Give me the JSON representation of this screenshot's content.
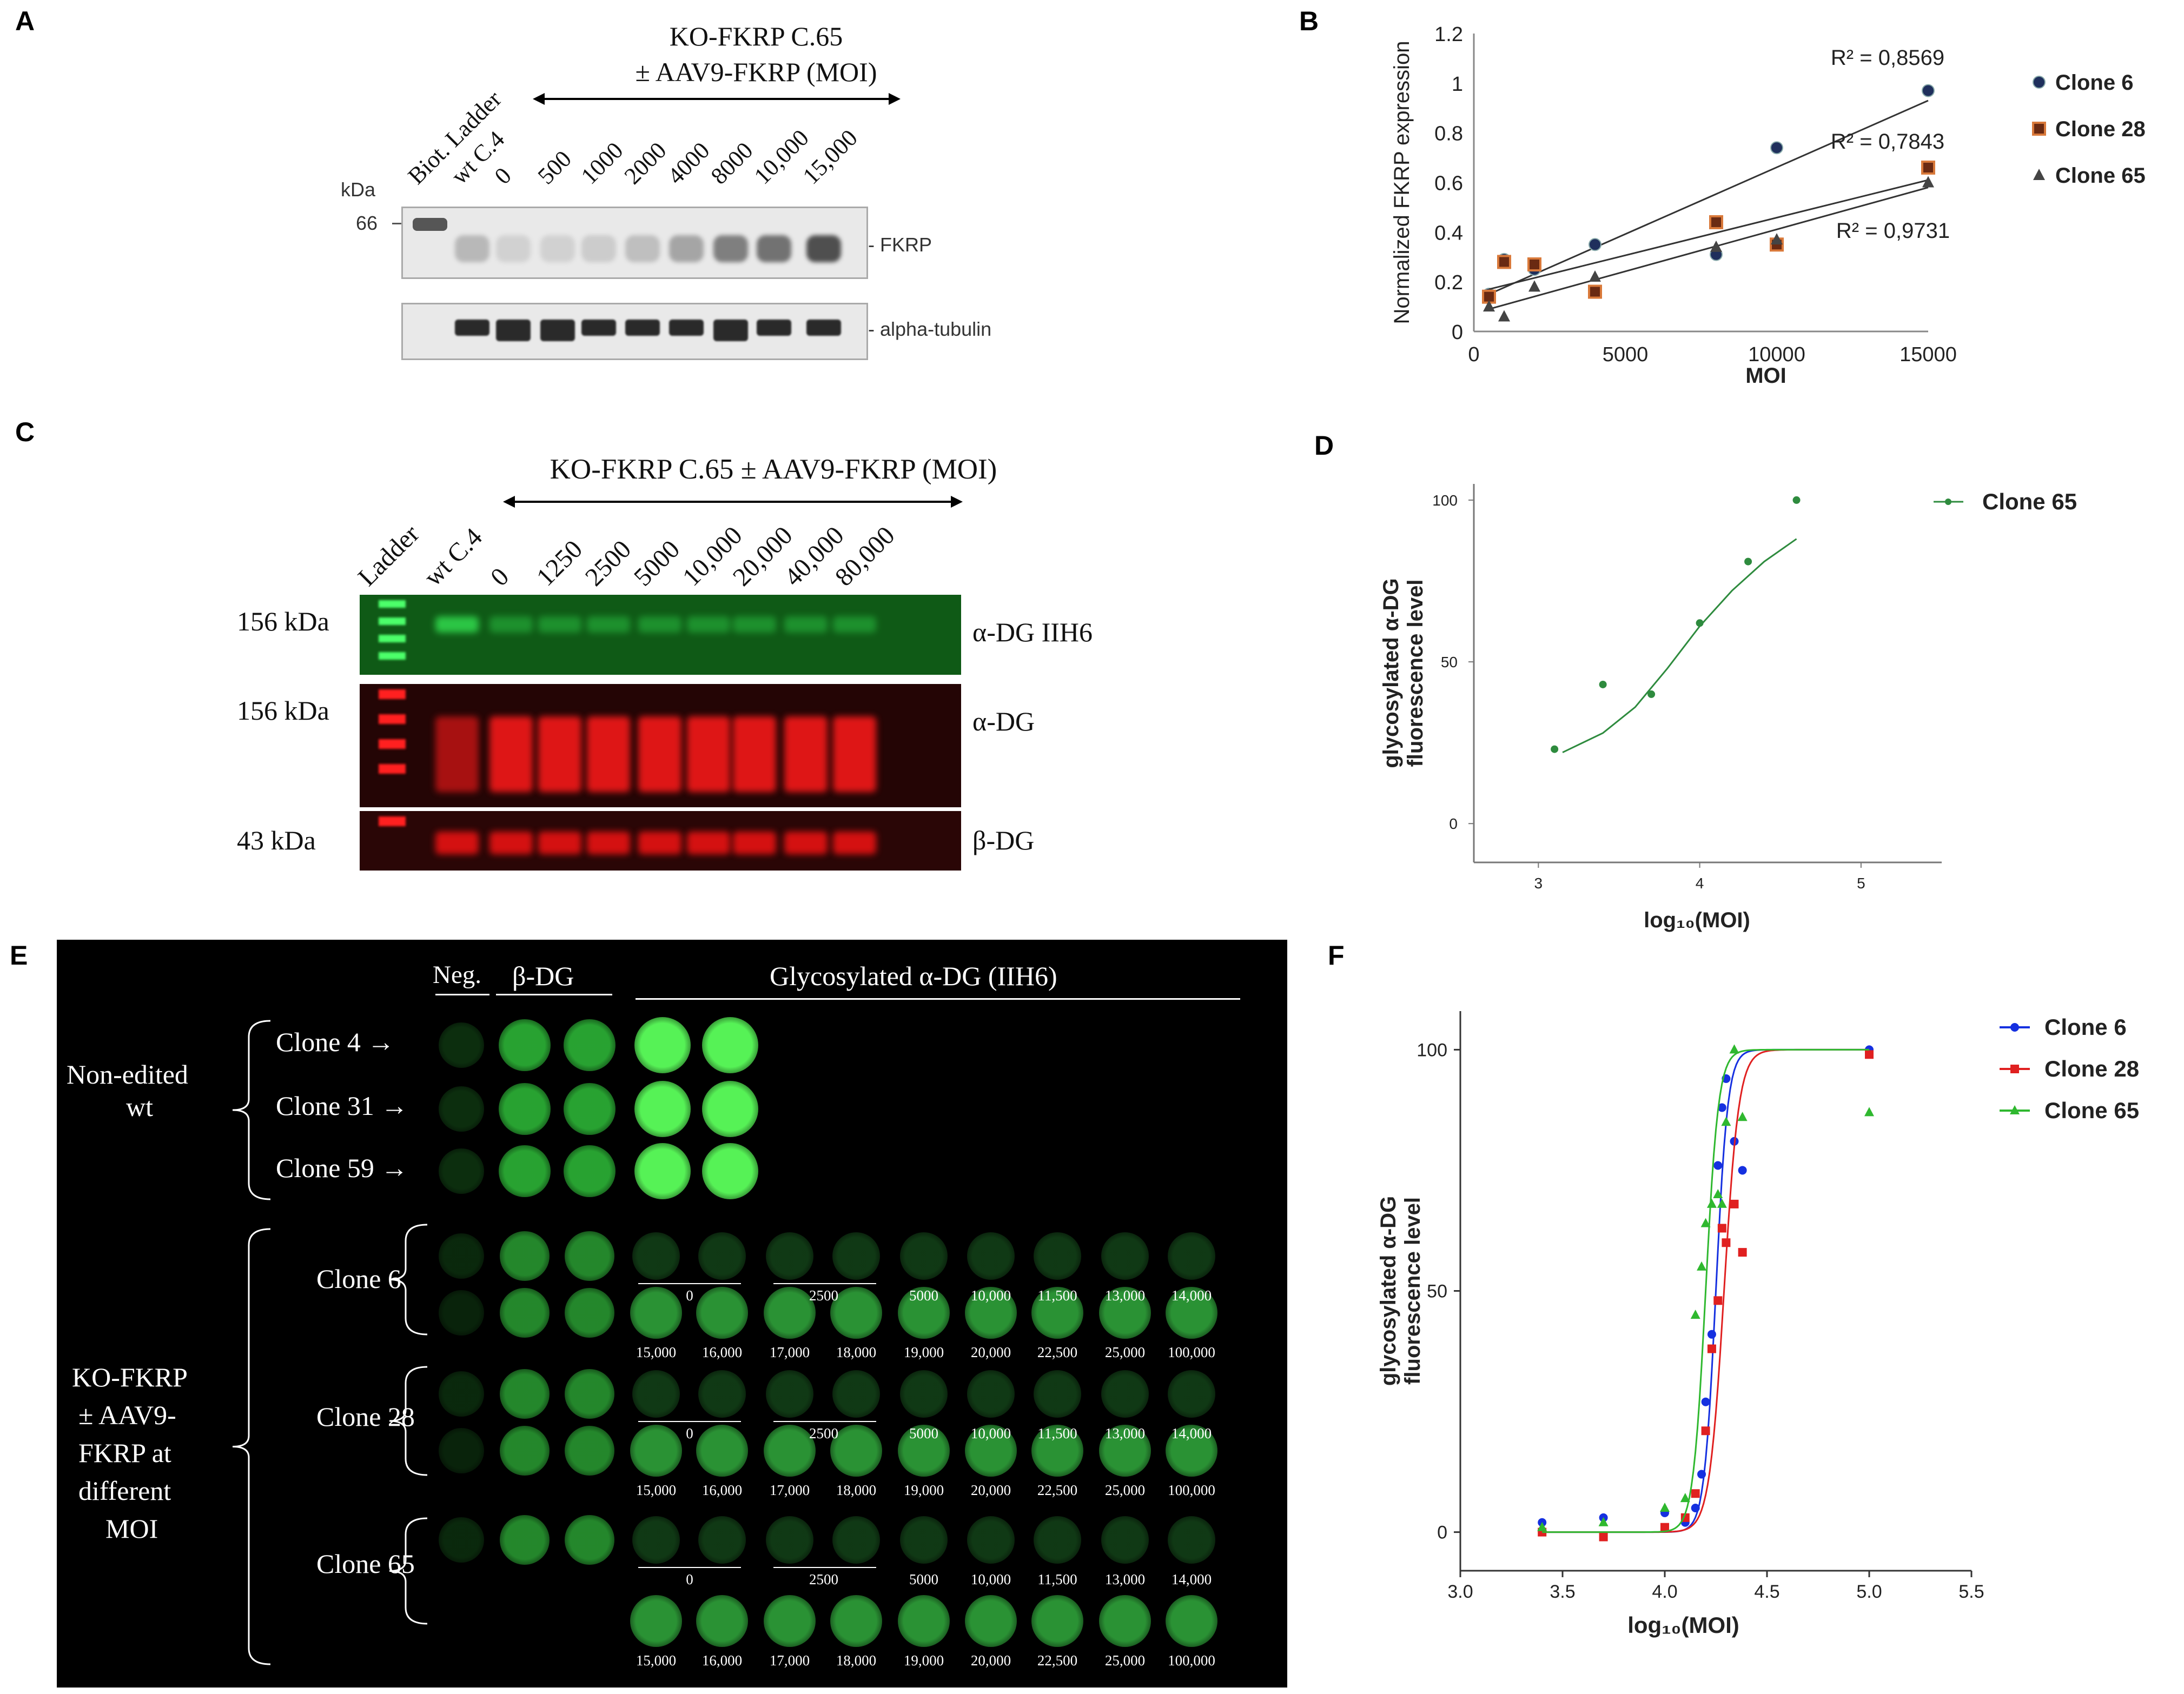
{
  "panelA": {
    "label": "A",
    "title_line1": "KO-FKRP C.65",
    "title_line2": "± AAV9-FKRP (MOI)",
    "lanes": [
      "Biot. Ladder",
      "wt C.4",
      "0",
      "500",
      "1000",
      "2000",
      "4000",
      "8000",
      "10,000",
      "15,000"
    ],
    "kda_label": "kDa",
    "marker": "66",
    "band1": "FKRP",
    "band2": "alpha-tubulin"
  },
  "panelB": {
    "label": "B",
    "r2_clone6": "R² = 0,8569",
    "r2_clone28": "R² = 0,7843",
    "r2_clone65": "R² = 0,9731"
  },
  "panelC": {
    "label": "C",
    "title": "KO-FKRP  C.65 ± AAV9-FKRP  (MOI)",
    "lanes": [
      "Ladder",
      "wt C.4",
      "0",
      "1250",
      "2500",
      "5000",
      "10,000",
      "20,000",
      "40,000",
      "80,000"
    ],
    "rows": [
      {
        "kda": "156 kDa",
        "name": "α-DG IIH6"
      },
      {
        "kda": "156 kDa",
        "name": "α-DG"
      },
      {
        "kda": "43 kDa",
        "name": "β-DG"
      }
    ]
  },
  "panelD": {
    "label": "D"
  },
  "panelE": {
    "label": "E",
    "col_neg": "Neg.",
    "col_bdg": "β-DG",
    "col_glyco": "Glycosylated α-DG (IIH6)",
    "group1": [
      "Non-edited",
      "wt"
    ],
    "group2": [
      "KO-FKRP",
      "± AAV9-",
      "FKRP at",
      "different",
      "MOI"
    ],
    "wt_clones": [
      "Clone 4 →",
      "Clone 31 →",
      "Clone 59 →"
    ],
    "ko_clones": [
      "Clone 6",
      "Clone 28",
      "Clone 65"
    ],
    "moi_row1": [
      "0",
      "2500",
      "5000",
      "10,000",
      "11,500",
      "13,000",
      "14,000"
    ],
    "moi_row2": [
      "15,000",
      "16,000",
      "17,000",
      "18,000",
      "19,000",
      "20,000",
      "22,500",
      "25,000",
      "100,000"
    ]
  },
  "panelF": {
    "label": "F"
  },
  "chart_data": [
    {
      "type": "scatter",
      "panel": "B",
      "xlabel": "MOI",
      "ylabel": "Normalized FKRP expression",
      "xlim": [
        0,
        15000
      ],
      "ylim": [
        0,
        1.2
      ],
      "xticks": [
        "0",
        "5000",
        "10000",
        "15000"
      ],
      "yticks": [
        "0",
        "0.2",
        "0.4",
        "0.6",
        "0.8",
        "1",
        "1.2"
      ],
      "legend_position": "right",
      "series": [
        {
          "name": "Clone 6",
          "color": "#1f2f5c",
          "marker": "circle",
          "x": [
            500,
            1000,
            2000,
            4000,
            8000,
            10000,
            15000
          ],
          "y": [
            0.15,
            0.29,
            0.25,
            0.35,
            0.31,
            0.74,
            0.97
          ],
          "trend": [
            0.15,
            0.93
          ]
        },
        {
          "name": "Clone 28",
          "color": "#d9793a",
          "marker": "square",
          "x": [
            500,
            1000,
            2000,
            4000,
            8000,
            10000,
            15000
          ],
          "y": [
            0.14,
            0.28,
            0.27,
            0.16,
            0.44,
            0.35,
            0.66
          ],
          "trend": [
            0.17,
            0.61
          ]
        },
        {
          "name": "Clone 65",
          "color": "#444444",
          "marker": "triangle",
          "x": [
            500,
            1000,
            2000,
            4000,
            8000,
            10000,
            15000
          ],
          "y": [
            0.1,
            0.06,
            0.18,
            0.22,
            0.34,
            0.37,
            0.6
          ],
          "trend": [
            0.09,
            0.58
          ]
        }
      ]
    },
    {
      "type": "scatter",
      "panel": "D",
      "xlabel": "log₁₀(MOI)",
      "ylabel": "glycosylated α-DG fluorescence level",
      "xlim": [
        2.6,
        5.5
      ],
      "ylim": [
        -12,
        105
      ],
      "xticks": [
        "3",
        "4",
        "5"
      ],
      "yticks": [
        "0",
        "50",
        "100"
      ],
      "legend_position": "top-right",
      "series": [
        {
          "name": "Clone 65",
          "color": "#2e8b3e",
          "x": [
            3.1,
            3.4,
            3.7,
            4.0,
            4.3,
            4.6
          ],
          "y": [
            23,
            43,
            40,
            62,
            81,
            100
          ],
          "fit": [
            [
              3.15,
              22
            ],
            [
              3.4,
              28
            ],
            [
              3.6,
              36
            ],
            [
              3.8,
              48
            ],
            [
              4.0,
              61
            ],
            [
              4.2,
              72
            ],
            [
              4.4,
              81
            ],
            [
              4.6,
              88
            ]
          ]
        }
      ]
    },
    {
      "type": "scatter",
      "panel": "F",
      "xlabel": "log₁₀(MOI)",
      "ylabel": "glycosylated α-DG fluorescence level",
      "xlim": [
        3.0,
        5.5
      ],
      "ylim": [
        -8,
        108
      ],
      "xticks": [
        "3.0",
        "3.5",
        "4.0",
        "4.5",
        "5.0",
        "5.5"
      ],
      "yticks": [
        "0",
        "50",
        "100"
      ],
      "legend_position": "top-right",
      "series": [
        {
          "name": "Clone 6",
          "color": "#1530e0",
          "marker": "circle",
          "x": [
            3.4,
            3.7,
            4.0,
            4.1,
            4.15,
            4.18,
            4.2,
            4.23,
            4.26,
            4.28,
            4.3,
            4.34,
            4.38,
            5.0
          ],
          "y": [
            2,
            3,
            4,
            2,
            5,
            12,
            27,
            41,
            76,
            88,
            94,
            81,
            75,
            100
          ],
          "ec50": 4.25,
          "hill": 15
        },
        {
          "name": "Clone 28",
          "color": "#e02020",
          "marker": "square",
          "x": [
            3.4,
            3.7,
            4.0,
            4.1,
            4.15,
            4.2,
            4.23,
            4.26,
            4.28,
            4.3,
            4.34,
            4.38,
            5.0
          ],
          "y": [
            0,
            -1,
            1,
            3,
            8,
            21,
            38,
            48,
            63,
            60,
            68,
            58,
            99
          ],
          "ec50": 4.29,
          "hill": 12
        },
        {
          "name": "Clone 65",
          "color": "#2fb82f",
          "marker": "triangle",
          "x": [
            3.4,
            3.7,
            4.0,
            4.1,
            4.15,
            4.18,
            4.2,
            4.23,
            4.26,
            4.28,
            4.3,
            4.34,
            4.38,
            5.0
          ],
          "y": [
            1,
            2,
            5,
            7,
            45,
            55,
            64,
            68,
            70,
            68,
            85,
            100,
            86,
            87
          ],
          "ec50": 4.2,
          "hill": 14
        }
      ]
    }
  ]
}
